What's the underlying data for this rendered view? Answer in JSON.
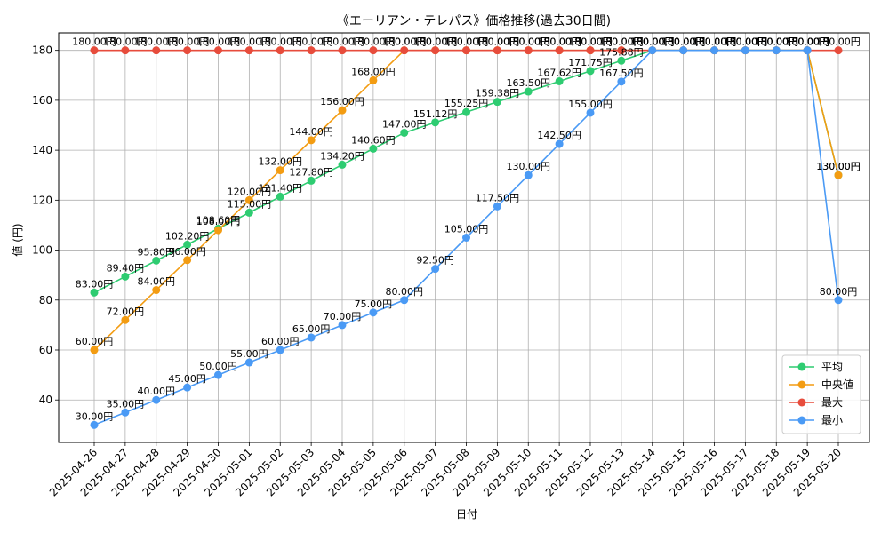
{
  "chart_data": {
    "type": "line",
    "title": "《エーリアン・テレパス》価格推移(過去30日間)",
    "xlabel": "日付",
    "ylabel": "値 (円)",
    "ylim": [
      23,
      187
    ],
    "yticks": [
      40,
      60,
      80,
      100,
      120,
      140,
      160,
      180
    ],
    "grid": true,
    "legend_position": "bottom-right",
    "label_suffix": "円",
    "categories": [
      "2025-04-26",
      "2025-04-27",
      "2025-04-28",
      "2025-04-29",
      "2025-04-30",
      "2025-05-01",
      "2025-05-02",
      "2025-05-03",
      "2025-05-04",
      "2025-05-05",
      "2025-05-06",
      "2025-05-07",
      "2025-05-08",
      "2025-05-09",
      "2025-05-10",
      "2025-05-11",
      "2025-05-12",
      "2025-05-13",
      "2025-05-14",
      "2025-05-15",
      "2025-05-16",
      "2025-05-17",
      "2025-05-18",
      "2025-05-19",
      "2025-05-20"
    ],
    "series": [
      {
        "name": "平均",
        "color": "#2ecc71",
        "values": [
          83.0,
          89.4,
          95.8,
          102.2,
          108.6,
          115.0,
          121.4,
          127.8,
          134.2,
          140.6,
          147.0,
          151.12,
          155.25,
          159.38,
          163.5,
          167.62,
          171.75,
          175.88,
          180.0,
          180.0,
          180.0,
          180.0,
          180.0,
          180.0,
          130.0
        ]
      },
      {
        "name": "中央値",
        "color": "#f39c12",
        "values": [
          60.0,
          72.0,
          84.0,
          96.0,
          108.0,
          120.0,
          132.0,
          144.0,
          156.0,
          168.0,
          180.0,
          180.0,
          180.0,
          180.0,
          180.0,
          180.0,
          180.0,
          180.0,
          180.0,
          180.0,
          180.0,
          180.0,
          180.0,
          180.0,
          130.0
        ]
      },
      {
        "name": "最大",
        "color": "#e74c3c",
        "values": [
          180.0,
          180.0,
          180.0,
          180.0,
          180.0,
          180.0,
          180.0,
          180.0,
          180.0,
          180.0,
          180.0,
          180.0,
          180.0,
          180.0,
          180.0,
          180.0,
          180.0,
          180.0,
          180.0,
          180.0,
          180.0,
          180.0,
          180.0,
          180.0,
          180.0
        ]
      },
      {
        "name": "最小",
        "color": "#4a9af5",
        "values": [
          30.0,
          35.0,
          40.0,
          45.0,
          50.0,
          55.0,
          60.0,
          65.0,
          70.0,
          75.0,
          80.0,
          92.5,
          105.0,
          117.5,
          130.0,
          142.5,
          155.0,
          167.5,
          180.0,
          180.0,
          180.0,
          180.0,
          180.0,
          180.0,
          80.0
        ]
      }
    ]
  }
}
